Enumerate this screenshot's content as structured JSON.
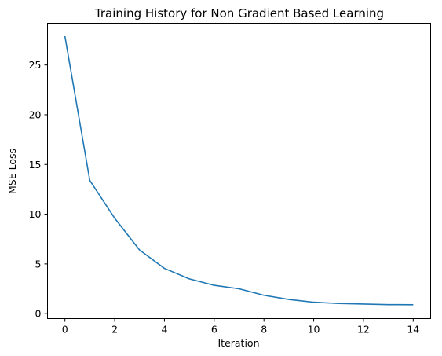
{
  "chart_data": {
    "type": "line",
    "title": "Training History for Non Gradient Based Learning",
    "xlabel": "Iteration",
    "ylabel": "MSE Loss",
    "x": [
      0,
      1,
      2,
      3,
      4,
      5,
      6,
      7,
      8,
      9,
      10,
      11,
      12,
      13,
      14
    ],
    "series": [
      {
        "values": [
          27.9,
          13.4,
          9.6,
          6.4,
          4.55,
          3.5,
          2.85,
          2.5,
          1.85,
          1.43,
          1.15,
          1.02,
          0.97,
          0.91,
          0.9
        ],
        "color": "#1f77b4"
      }
    ],
    "xlim": [
      -0.7,
      14.7
    ],
    "ylim": [
      -0.5,
      29.2
    ],
    "xticks": [
      0,
      2,
      4,
      6,
      8,
      10,
      12,
      14
    ],
    "yticks": [
      0,
      5,
      10,
      15,
      20,
      25
    ],
    "grid": false,
    "legend": "none"
  }
}
